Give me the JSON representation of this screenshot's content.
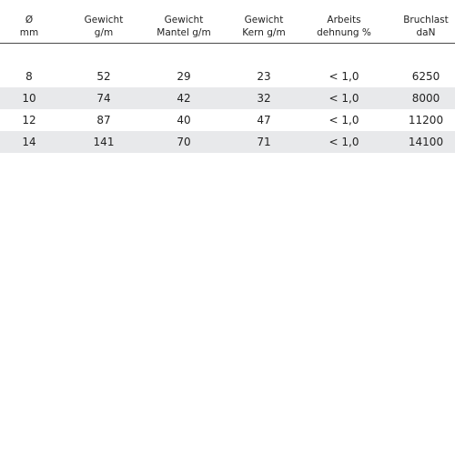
{
  "table": {
    "headers": [
      {
        "line1": "Ø",
        "line2": "mm"
      },
      {
        "line1": "Gewicht",
        "line2": "g/m"
      },
      {
        "line1": "Gewicht",
        "line2": "Mantel g/m"
      },
      {
        "line1": "Gewicht",
        "line2": "Kern g/m"
      },
      {
        "line1": "Arbeits",
        "line2": "dehnung %"
      },
      {
        "line1": "Bruchlast",
        "line2": "daN"
      }
    ],
    "rows": [
      [
        "8",
        "52",
        "29",
        "23",
        "< 1,0",
        "6250"
      ],
      [
        "10",
        "74",
        "42",
        "32",
        "< 1,0",
        "8000"
      ],
      [
        "12",
        "87",
        "40",
        "47",
        "< 1,0",
        "11200"
      ],
      [
        "14",
        "141",
        "70",
        "71",
        "< 1,0",
        "14100"
      ]
    ],
    "shaded_row_color": "#e8e9eb",
    "header_rule_color": "#4a4a4a"
  }
}
